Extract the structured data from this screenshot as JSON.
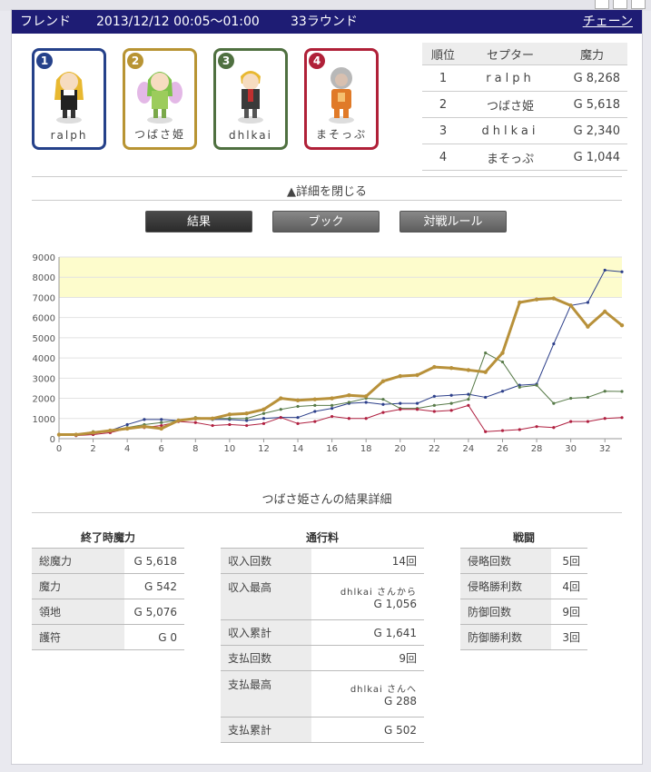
{
  "header": {
    "mode": "フレンド",
    "datetime": "2013/12/12 00:05〜01:00",
    "rounds": "33ラウンド",
    "chain": "チェーン"
  },
  "players": [
    {
      "num": "1",
      "name": "ralph",
      "color": "#25418a"
    },
    {
      "num": "2",
      "name": "つばさ姫",
      "color": "#b89433"
    },
    {
      "num": "3",
      "name": "dhlkai",
      "color": "#4f7040"
    },
    {
      "num": "4",
      "name": "まそっぷ",
      "color": "#b02038"
    }
  ],
  "ranking": {
    "headers": [
      "順位",
      "セプター",
      "魔力"
    ],
    "rows": [
      {
        "rank": "1",
        "name": "ralph",
        "magic": "G 8,268"
      },
      {
        "rank": "2",
        "name": "つばさ姫",
        "magic": "G 5,618"
      },
      {
        "rank": "3",
        "name": "dhlkai",
        "magic": "G 2,340"
      },
      {
        "rank": "4",
        "name": "まそっぷ",
        "magic": "G 1,044"
      }
    ]
  },
  "toggle_label": "▲詳細を閉じる",
  "tabs": [
    "結果",
    "ブック",
    "対戦ルール"
  ],
  "chart_data": {
    "type": "line",
    "x": [
      0,
      1,
      2,
      3,
      4,
      5,
      6,
      7,
      8,
      9,
      10,
      11,
      12,
      13,
      14,
      15,
      16,
      17,
      18,
      19,
      20,
      21,
      22,
      23,
      24,
      25,
      26,
      27,
      28,
      29,
      30,
      31,
      32,
      33
    ],
    "xticks": [
      0,
      2,
      4,
      6,
      8,
      10,
      12,
      14,
      16,
      18,
      20,
      22,
      24,
      26,
      28,
      30,
      32
    ],
    "yticks": [
      0,
      1000,
      2000,
      3000,
      4000,
      5000,
      6000,
      7000,
      8000,
      9000
    ],
    "ylim": [
      0,
      9000
    ],
    "highlight_band": [
      7000,
      9000
    ],
    "series": [
      {
        "name": "ralph",
        "color": "#2c3f8a",
        "values": [
          200,
          150,
          300,
          400,
          700,
          950,
          950,
          900,
          1000,
          950,
          950,
          900,
          1000,
          1050,
          1050,
          1350,
          1500,
          1750,
          1800,
          1700,
          1750,
          1750,
          2100,
          2150,
          2200,
          2050,
          2350,
          2650,
          2700,
          4700,
          6600,
          6750,
          8350,
          8268
        ]
      },
      {
        "name": "つばさ姫",
        "color": "#b8913a",
        "values": [
          200,
          200,
          300,
          400,
          500,
          600,
          500,
          900,
          1000,
          1000,
          1200,
          1250,
          1450,
          2000,
          1900,
          1950,
          2000,
          2150,
          2100,
          2850,
          3100,
          3150,
          3550,
          3500,
          3400,
          3300,
          4250,
          6750,
          6900,
          6950,
          6600,
          5550,
          6300,
          5618
        ]
      },
      {
        "name": "dhlkai",
        "color": "#577a48",
        "values": [
          200,
          200,
          350,
          400,
          550,
          700,
          800,
          900,
          1050,
          1000,
          1000,
          1000,
          1250,
          1450,
          1600,
          1650,
          1650,
          1800,
          2000,
          1950,
          1500,
          1500,
          1650,
          1750,
          1950,
          4250,
          3800,
          2550,
          2650,
          1750,
          2000,
          2050,
          2350,
          2340
        ]
      },
      {
        "name": "まそっぷ",
        "color": "#b02040",
        "values": [
          200,
          150,
          200,
          300,
          500,
          550,
          650,
          850,
          800,
          650,
          700,
          650,
          750,
          1050,
          750,
          850,
          1100,
          1000,
          1000,
          1300,
          1450,
          1450,
          1350,
          1400,
          1650,
          350,
          400,
          450,
          600,
          550,
          850,
          850,
          1000,
          1044
        ]
      }
    ]
  },
  "detail_title": "つばさ姫さんの結果詳細",
  "end_magic": {
    "caption": "終了時魔力",
    "rows": [
      {
        "k": "総魔力",
        "v": "G 5,618"
      },
      {
        "k": "魔力",
        "v": "G 542"
      },
      {
        "k": "領地",
        "v": "G 5,076"
      },
      {
        "k": "護符",
        "v": "G 0"
      }
    ]
  },
  "toll": {
    "caption": "通行料",
    "rows": [
      {
        "k": "収入回数",
        "v": "14回"
      },
      {
        "k": "収入最高",
        "who": "dhlkai さんから",
        "v": "G 1,056"
      },
      {
        "k": "収入累計",
        "v": "G 1,641"
      },
      {
        "k": "支払回数",
        "v": "9回"
      },
      {
        "k": "支払最高",
        "who": "dhlkai さんへ",
        "v": "G 288"
      },
      {
        "k": "支払累計",
        "v": "G 502"
      }
    ]
  },
  "battle": {
    "caption": "戦闘",
    "rows": [
      {
        "k": "侵略回数",
        "v": "5回"
      },
      {
        "k": "侵略勝利数",
        "v": "4回"
      },
      {
        "k": "防御回数",
        "v": "9回"
      },
      {
        "k": "防御勝利数",
        "v": "3回"
      }
    ]
  }
}
